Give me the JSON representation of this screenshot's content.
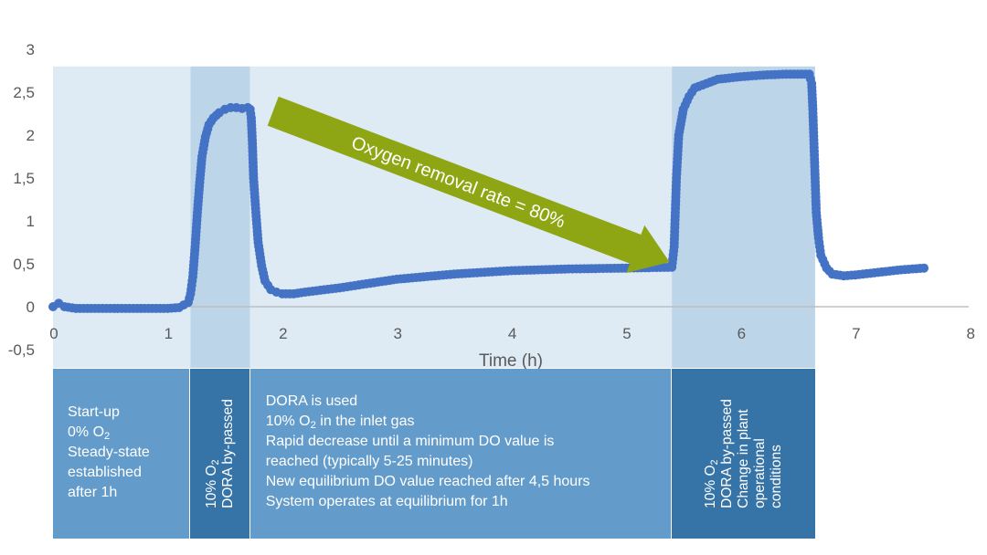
{
  "chart_data": {
    "type": "scatter",
    "xlabel": "Time (h)",
    "ylabel": "",
    "xlim": [
      0,
      8
    ],
    "ylim": [
      -0.5,
      3
    ],
    "x_ticks": [
      "0",
      "1",
      "2",
      "3",
      "4",
      "5",
      "6",
      "7",
      "8"
    ],
    "y_ticks": [
      "-0,5",
      "0",
      "0,5",
      "1",
      "1,5",
      "2",
      "2,5",
      "3"
    ],
    "grid": false,
    "marker_color": "#4472c4",
    "shaded_regions": [
      {
        "x": [
          0,
          1.2
        ],
        "shade": "light"
      },
      {
        "x": [
          1.2,
          1.72
        ],
        "shade": "dark"
      },
      {
        "x": [
          1.72,
          5.4
        ],
        "shade": "light"
      },
      {
        "x": [
          5.4,
          6.65
        ],
        "shade": "dark"
      }
    ],
    "series": [
      {
        "x": [
          0.0,
          0.05,
          0.1,
          0.2,
          0.4,
          0.6,
          0.8,
          1.0,
          1.1,
          1.18,
          1.2,
          1.22,
          1.24,
          1.26,
          1.28,
          1.3,
          1.33,
          1.36,
          1.4,
          1.45,
          1.5,
          1.55,
          1.6,
          1.65,
          1.7,
          1.72,
          1.73,
          1.74,
          1.75,
          1.77,
          1.79,
          1.82,
          1.85,
          1.9,
          1.95,
          2.0,
          2.1,
          2.2,
          2.5,
          3.0,
          3.5,
          4.0,
          4.5,
          5.0,
          5.4,
          5.42,
          5.44,
          5.46,
          5.5,
          5.55,
          5.6,
          5.7,
          5.8,
          6.0,
          6.2,
          6.4,
          6.6,
          6.62,
          6.63,
          6.64,
          6.65,
          6.66,
          6.68,
          6.7,
          6.75,
          6.8,
          6.9,
          7.0,
          7.2,
          7.4,
          7.6
        ],
        "y": [
          0.0,
          0.04,
          0.0,
          -0.02,
          -0.02,
          -0.02,
          -0.02,
          -0.02,
          -0.01,
          0.05,
          0.15,
          0.35,
          0.7,
          1.1,
          1.45,
          1.75,
          1.98,
          2.12,
          2.2,
          2.26,
          2.3,
          2.32,
          2.32,
          2.31,
          2.32,
          2.3,
          2.2,
          1.9,
          1.5,
          1.1,
          0.75,
          0.48,
          0.3,
          0.2,
          0.17,
          0.15,
          0.15,
          0.17,
          0.22,
          0.32,
          0.38,
          0.42,
          0.44,
          0.45,
          0.46,
          0.7,
          1.5,
          2.0,
          2.3,
          2.45,
          2.55,
          2.6,
          2.65,
          2.68,
          2.7,
          2.71,
          2.71,
          2.6,
          2.3,
          1.9,
          1.5,
          1.1,
          0.8,
          0.6,
          0.45,
          0.38,
          0.36,
          0.37,
          0.4,
          0.43,
          0.45
        ]
      }
    ],
    "annotations": [
      {
        "text": "Oxygen removal rate = 80%",
        "from": [
          1.92,
          2.28
        ],
        "to": [
          5.38,
          0.52
        ]
      }
    ]
  },
  "panels": [
    {
      "lines": [
        "Start-up",
        "0% O₂",
        "Steady-state",
        "established",
        "after 1h"
      ],
      "orientation": "horizontal",
      "shade": "light"
    },
    {
      "lines": [
        "10% O₂",
        "DORA by-passed"
      ],
      "orientation": "vertical",
      "shade": "dark"
    },
    {
      "lines": [
        "DORA  is used",
        "10% O₂ in the inlet gas",
        "Rapid decrease until a minimum DO value is",
        "reached (typically 5-25 minutes)",
        "New equilibrium DO value reached after 4,5 hours",
        "System operates at equilibrium for 1h"
      ],
      "orientation": "horizontal",
      "shade": "light"
    },
    {
      "lines": [
        "10% O₂",
        "DORA by-passed",
        "Change in plant",
        "operational",
        "conditions"
      ],
      "orientation": "vertical",
      "shade": "dark"
    }
  ]
}
